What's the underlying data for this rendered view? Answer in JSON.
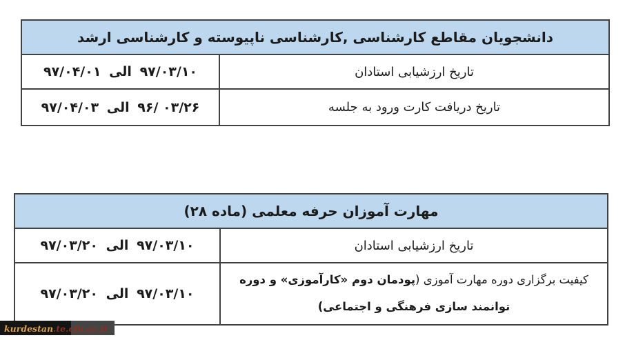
{
  "colors": {
    "header_bg": "#bdd7ee",
    "table_border": "#414141",
    "text": "#1b1b1b",
    "watermark_bg": "#141414",
    "watermark_site_color": "#dda04b",
    "watermark_domain_color": "#8c2e1c"
  },
  "tables": [
    {
      "header": "دانشجویان مقاطع کارشناسی ,کارشناسی ناپیوسته و کارشناسی ارشد",
      "rows": [
        {
          "label": "تاریخ ارزشیابی استادان",
          "date": {
            "to": "۹۷/۰۴/۰۱",
            "conj": "الی",
            "from": "۹۷/۰۳/۱۰"
          }
        },
        {
          "label": "تاریخ دریافت کارت ورود به جلسه",
          "date": {
            "to": "۹۷/۰۴/۰۳",
            "conj": "الی",
            "from": "۹۶/ ۰۳/۲۶"
          }
        }
      ]
    },
    {
      "header": "مهارت آموزان حرفه معلمی (ماده ۲۸)",
      "rows": [
        {
          "label": "تاریخ ارزشیابی استادان",
          "date": {
            "to": "۹۷/۰۳/۲۰",
            "conj": "الی",
            "from": "۹۷/۰۳/۱۰"
          }
        },
        {
          "label_regular": "کیفیت برگزاری دوره مهارت آموزی (",
          "label_bold": "پودمان دوم «کارآموزی» و دوره توانمند سازی فرهنگی و اجتماعی)",
          "date": {
            "to": "۹۷/۰۳/۲۰",
            "conj": "الی",
            "from": "۹۷/۰۳/۱۰"
          }
        }
      ]
    }
  ],
  "watermark": {
    "site": "kurdestan",
    "suffix": ".te.cfu.ac.ir"
  }
}
